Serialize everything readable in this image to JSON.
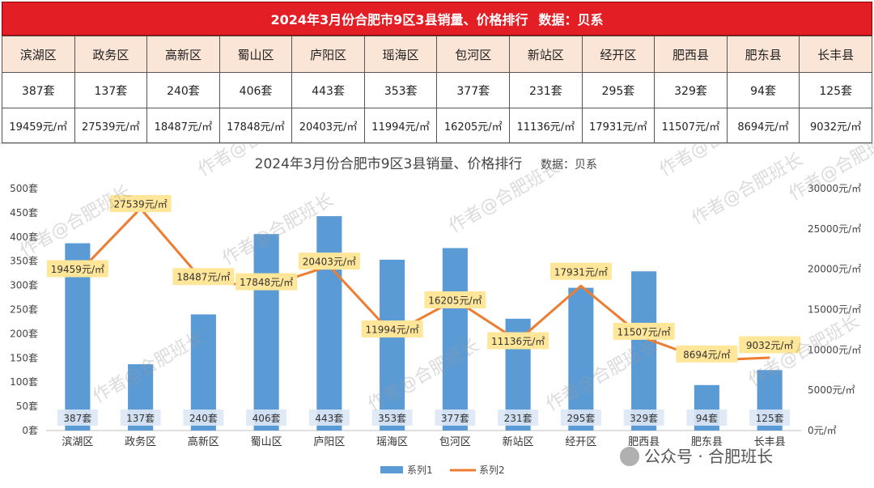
{
  "header": {
    "title": "2024年3月份合肥市9区3县销量、价格排行",
    "source_label": "数据：贝系"
  },
  "table": {
    "districts": [
      "滨湖区",
      "政务区",
      "高新区",
      "蜀山区",
      "庐阳区",
      "瑶海区",
      "包河区",
      "新站区",
      "经开区",
      "肥西县",
      "肥东县",
      "长丰县"
    ],
    "sales": [
      "387套",
      "137套",
      "240套",
      "406套",
      "443套",
      "353套",
      "377套",
      "231套",
      "295套",
      "329套",
      "94套",
      "125套"
    ],
    "prices": [
      "19459元/㎡",
      "27539元/㎡",
      "18487元/㎡",
      "17848元/㎡",
      "20403元/㎡",
      "11994元/㎡",
      "16205元/㎡",
      "11136元/㎡",
      "17931元/㎡",
      "11507元/㎡",
      "8694元/㎡",
      "9032元/㎡"
    ]
  },
  "chart_data": {
    "type": "bar",
    "title": "2024年3月份合肥市9区3县销量、价格排行",
    "subtitle": "数据：贝系",
    "categories": [
      "滨湖区",
      "政务区",
      "高新区",
      "蜀山区",
      "庐阳区",
      "瑶海区",
      "包河区",
      "新站区",
      "经开区",
      "肥西县",
      "肥东县",
      "长丰县"
    ],
    "series": [
      {
        "name": "系列1",
        "type": "bar",
        "axis": "left",
        "values": [
          387,
          137,
          240,
          406,
          443,
          353,
          377,
          231,
          295,
          329,
          94,
          125
        ],
        "labels": [
          "387套",
          "137套",
          "240套",
          "406套",
          "443套",
          "353套",
          "377套",
          "231套",
          "295套",
          "329套",
          "94套",
          "125套"
        ],
        "color": "#5b9bd5"
      },
      {
        "name": "系列2",
        "type": "line",
        "axis": "right",
        "values": [
          19459,
          27539,
          18487,
          17848,
          20403,
          11994,
          16205,
          11136,
          17931,
          11507,
          8694,
          9032
        ],
        "labels": [
          "19459元/㎡",
          "27539元/㎡",
          "18487元/㎡",
          "17848元/㎡",
          "20403元/㎡",
          "11994元/㎡",
          "16205元/㎡",
          "11136元/㎡",
          "17931元/㎡",
          "11507元/㎡",
          "8694元/㎡",
          "9032元/㎡"
        ],
        "color": "#ed7d31"
      }
    ],
    "y_left": {
      "min": 0,
      "max": 500,
      "step": 50,
      "tick_labels": [
        "0套",
        "50套",
        "100套",
        "150套",
        "200套",
        "250套",
        "300套",
        "350套",
        "400套",
        "450套",
        "500套"
      ]
    },
    "y_right": {
      "min": 0,
      "max": 30000,
      "step": 5000,
      "tick_labels": [
        "0元/㎡",
        "5000元/㎡",
        "10000元/㎡",
        "15000元/㎡",
        "20000元/㎡",
        "25000元/㎡",
        "30000元/㎡"
      ]
    },
    "grid": false,
    "legend": "bottom-center"
  },
  "watermark": {
    "text": "作者@合肥班长",
    "footer_text": "公众号 · 合肥班长"
  },
  "colors": {
    "title_bar": "#e41e25",
    "district_row": "#fbe5d6",
    "bar": "#5b9bd5",
    "line": "#ed7d31",
    "price_label_bg": "#ffe699",
    "sales_label_bg": "#dde8f5"
  }
}
